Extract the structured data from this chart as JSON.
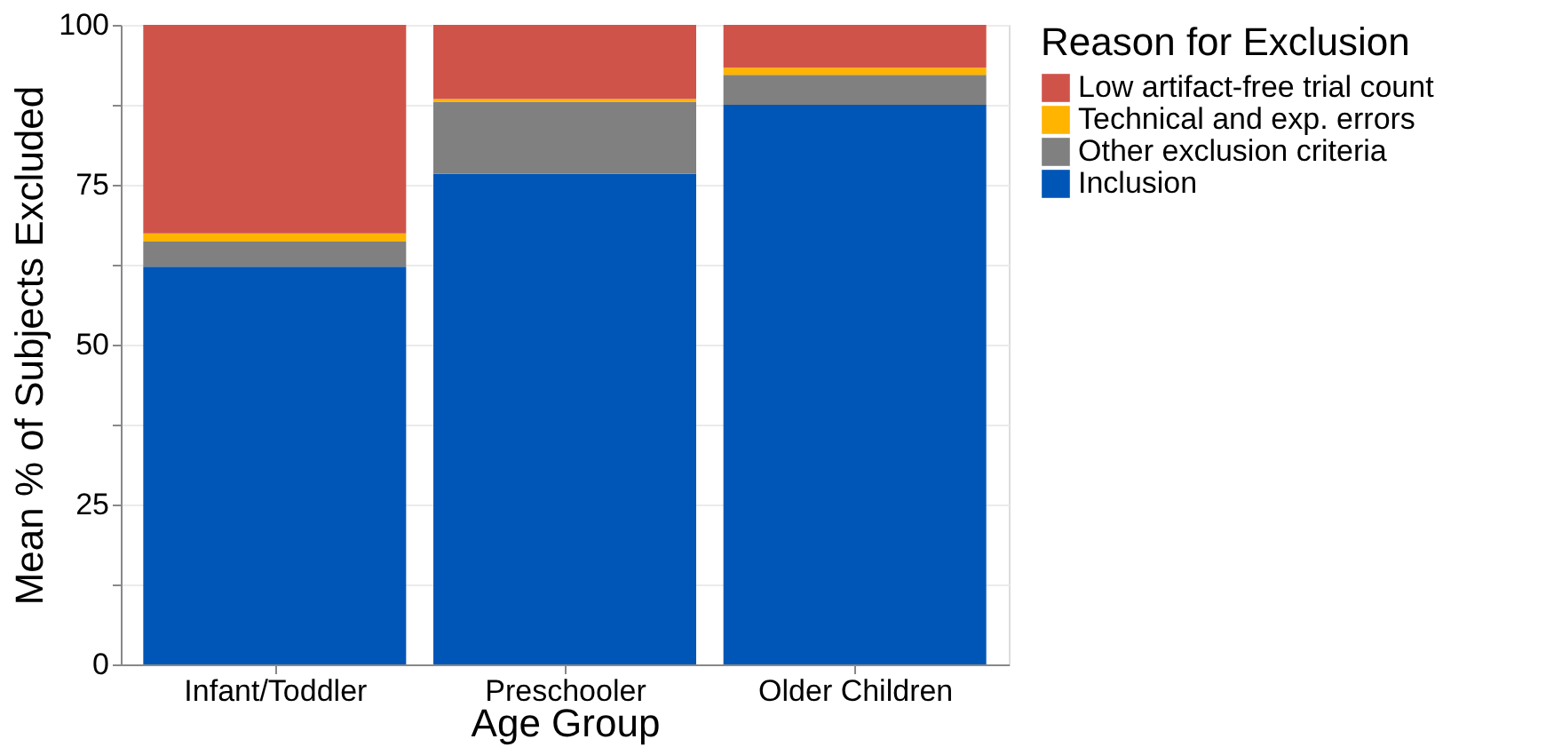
{
  "chart_data": {
    "type": "bar",
    "stacked": true,
    "xlabel": "Age Group",
    "ylabel": "Mean % of Subjects Excluded",
    "legend_title": "Reason for Exclusion",
    "legend": "right",
    "grid": "y",
    "categories": [
      "Infant/Toddler",
      "Preschooler",
      "Older Children"
    ],
    "series": [
      {
        "name": "Inclusion",
        "color": "#0056b7",
        "values": [
          62.2,
          76.7,
          87.5
        ]
      },
      {
        "name": "Other exclusion criteria",
        "color": "#808080",
        "values": [
          3.9,
          11.3,
          4.7
        ]
      },
      {
        "name": "Technical and exp. errors",
        "color": "#ffb400",
        "values": [
          1.3,
          0.4,
          1.1
        ]
      },
      {
        "name": "Low artifact-free trial count",
        "color": "#d0534a",
        "values": [
          32.6,
          11.6,
          6.7
        ]
      }
    ],
    "ylim": [
      0,
      100
    ],
    "yticks": [
      0,
      {
        "value": 12.5,
        "label": null
      },
      25,
      {
        "value": 37.5,
        "label": null
      },
      50,
      {
        "value": 62.5,
        "label": null
      },
      75,
      {
        "value": 87.5,
        "label": null
      },
      100
    ]
  }
}
